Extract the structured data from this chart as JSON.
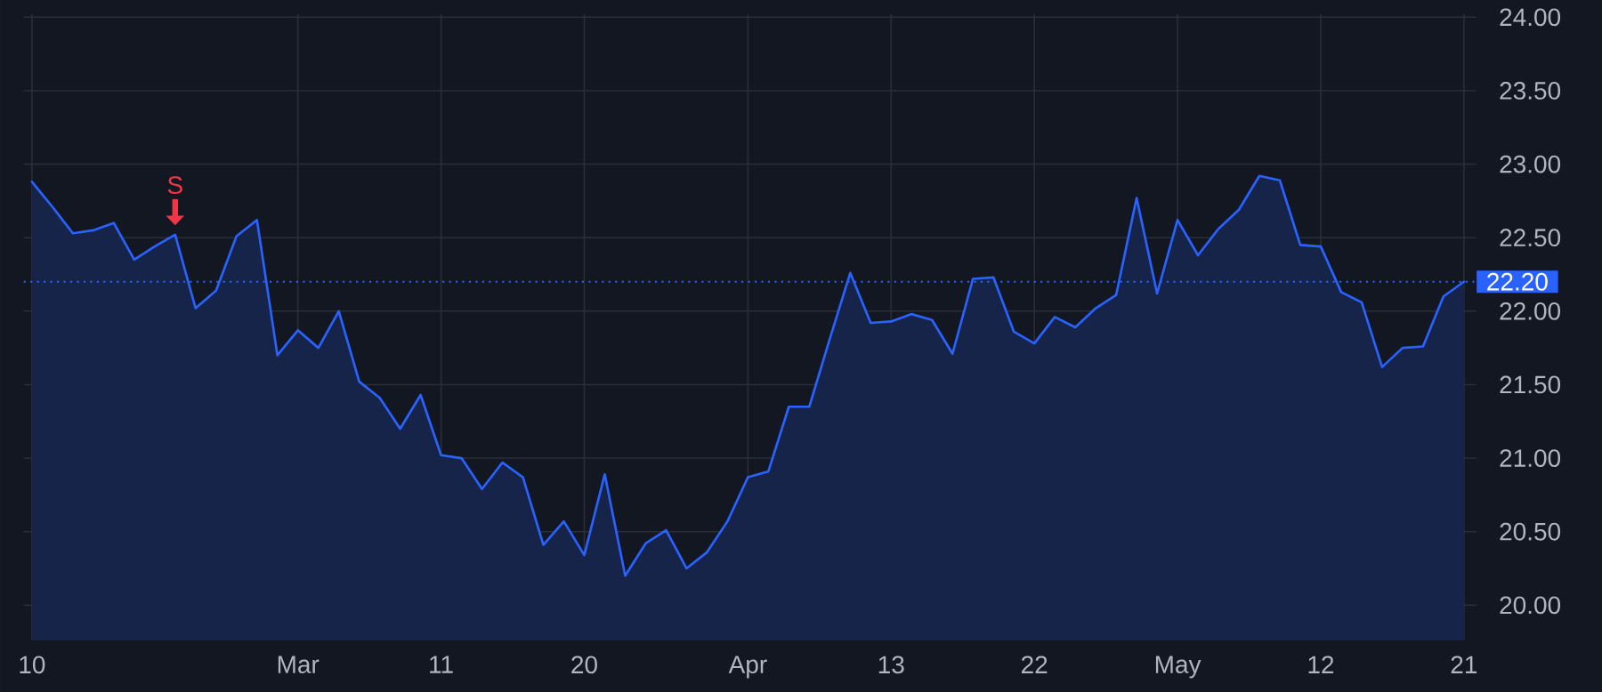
{
  "chart_data": {
    "type": "area",
    "color": "#2962ff",
    "categories": [
      "10",
      null,
      null,
      null,
      null,
      null,
      null,
      null,
      null,
      null,
      null,
      null,
      null,
      "Mar",
      null,
      null,
      null,
      null,
      null,
      null,
      "11",
      null,
      null,
      null,
      null,
      null,
      null,
      "20",
      null,
      null,
      null,
      null,
      null,
      null,
      null,
      "Apr",
      null,
      null,
      null,
      null,
      null,
      null,
      "13",
      null,
      null,
      null,
      null,
      null,
      null,
      "22",
      null,
      null,
      null,
      null,
      null,
      null,
      "May",
      null,
      null,
      null,
      null,
      null,
      null,
      "12",
      null,
      null,
      null,
      null,
      null,
      null,
      "21"
    ],
    "values": [
      22.88,
      22.71,
      22.53,
      22.55,
      22.6,
      22.35,
      22.44,
      22.52,
      22.02,
      22.14,
      22.51,
      22.62,
      21.7,
      21.87,
      21.75,
      22.0,
      21.52,
      21.41,
      21.2,
      21.43,
      21.02,
      21.0,
      20.79,
      20.97,
      20.87,
      20.41,
      20.57,
      20.34,
      20.89,
      20.2,
      20.42,
      20.51,
      20.25,
      20.36,
      20.57,
      20.87,
      20.91,
      21.35,
      21.35,
      21.81,
      22.26,
      21.92,
      21.93,
      21.98,
      21.94,
      21.71,
      22.22,
      22.23,
      21.86,
      21.78,
      21.96,
      21.89,
      22.02,
      22.11,
      22.77,
      22.12,
      22.62,
      22.38,
      22.56,
      22.69,
      22.92,
      22.89,
      22.45,
      22.44,
      22.13,
      22.06,
      21.62,
      21.75,
      21.76,
      22.1,
      22.2
    ],
    "ylim": [
      19.76,
      24.02
    ],
    "yticks": [
      {
        "value": 20,
        "label": "20.00"
      },
      {
        "value": 20.5,
        "label": "20.50"
      },
      {
        "value": 21,
        "label": "21.00"
      },
      {
        "value": 21.5,
        "label": "21.50"
      },
      {
        "value": 22,
        "label": "22.00"
      },
      {
        "value": 22.5,
        "label": "22.50"
      },
      {
        "value": 23,
        "label": "23.00"
      },
      {
        "value": 23.5,
        "label": "23.50"
      },
      {
        "value": 24,
        "label": "24.00"
      }
    ],
    "grid": true,
    "ref_lines": [
      {
        "axis": "y",
        "value": 22.2,
        "label": "22.20",
        "color": "#2962ff",
        "line_style": "dotted"
      }
    ],
    "annotations": [
      {
        "text": "S",
        "y": 22.52
      }
    ]
  }
}
